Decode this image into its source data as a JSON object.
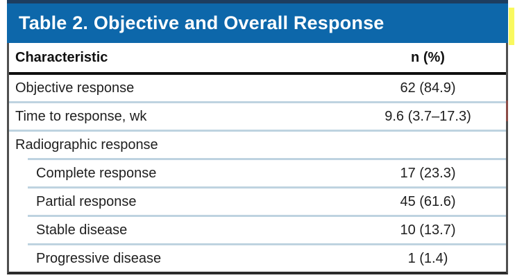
{
  "table": {
    "title": "Table 2. Objective and Overall Response",
    "columns": [
      "Characteristic",
      "n (%)"
    ],
    "rows": [
      {
        "label": "Objective response",
        "value": "62 (84.9)"
      },
      {
        "label": "Time to response, wk",
        "value": "9.6 (3.7–17.3)"
      },
      {
        "label": "Radiographic response",
        "value": ""
      },
      {
        "label": "Complete response",
        "value": "17 (23.3)"
      },
      {
        "label": "Partial response",
        "value": "45 (61.6)"
      },
      {
        "label": "Stable disease",
        "value": "10 (13.7)"
      },
      {
        "label": "Progressive disease",
        "value": "1 (1.4)"
      }
    ],
    "colors": {
      "title_bar_blue": "#0d67aa",
      "title_bar_top_navy": "#1d3d60",
      "row_divider_blue": "#bed3e0",
      "header_rule_black": "#0f0f0f",
      "outer_border_gray": "#4f4f4f",
      "highlight_artifact_yellow": "#f9f95e",
      "title_text": "#ffffff",
      "body_text": "#1e1e1e"
    }
  }
}
